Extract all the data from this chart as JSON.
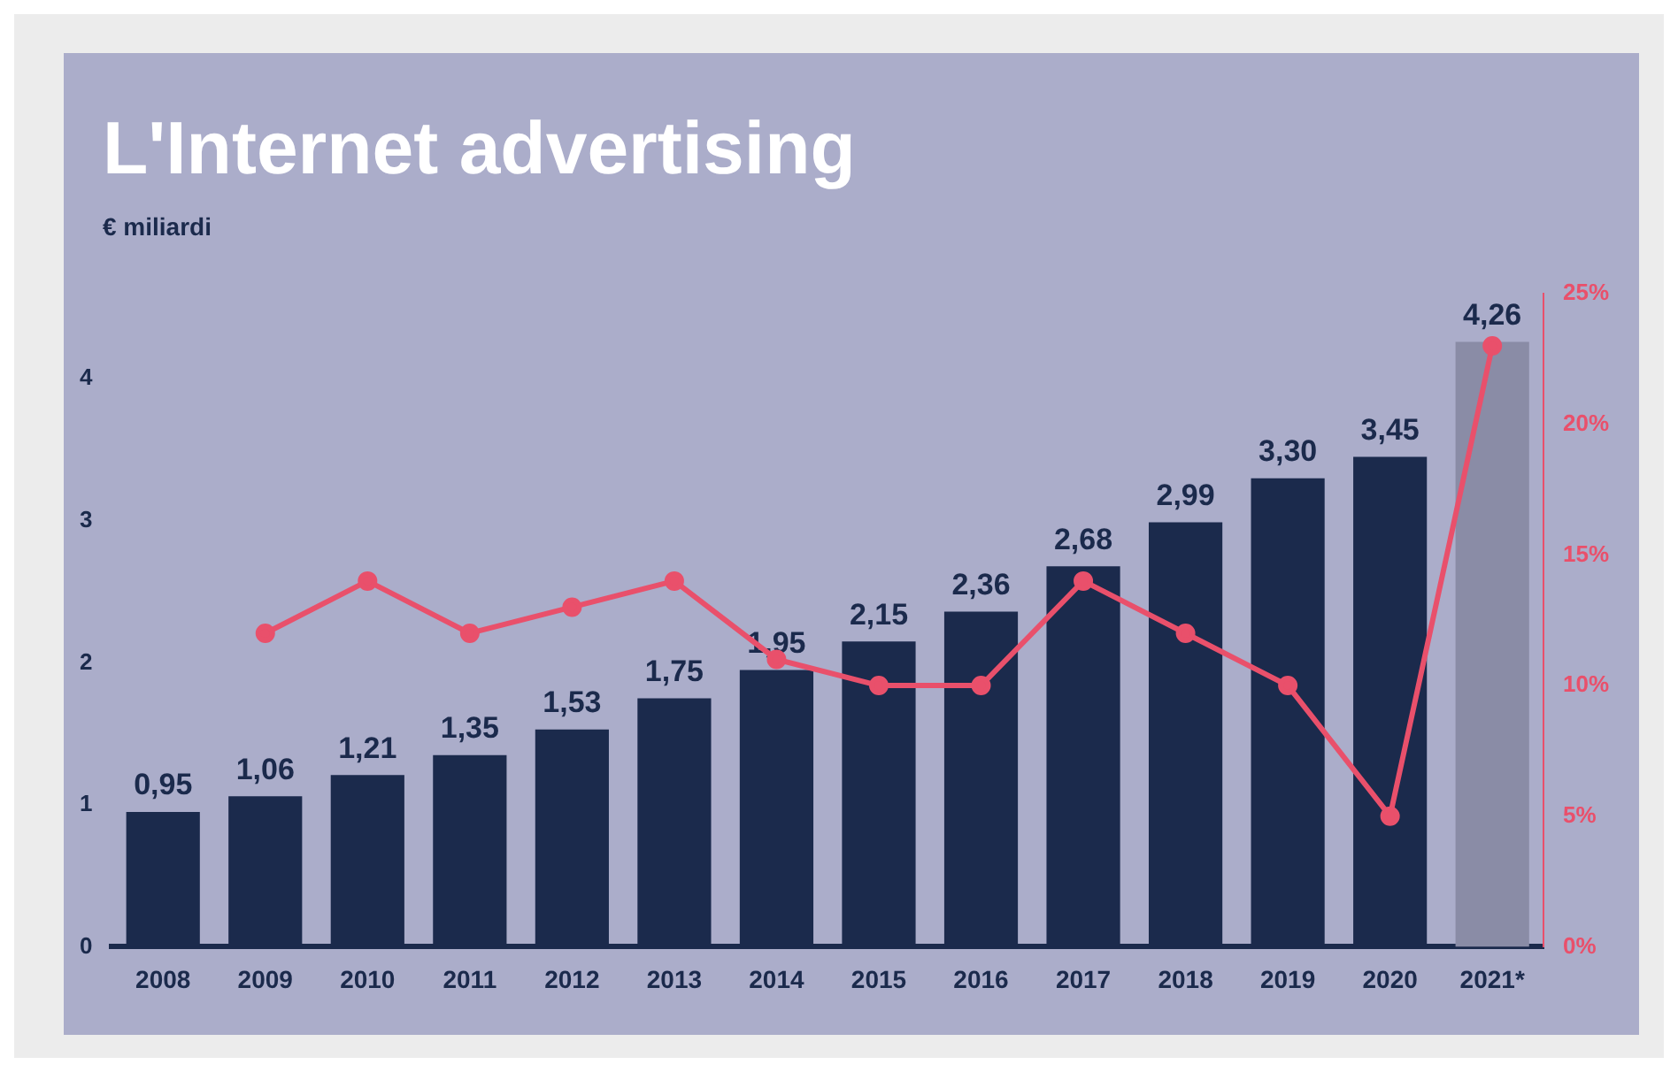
{
  "chart_data": {
    "type": "bar",
    "title": "L'Internet advertising",
    "ylabel": "€ miliardi",
    "categories": [
      "2008",
      "2009",
      "2010",
      "2011",
      "2012",
      "2013",
      "2014",
      "2015",
      "2016",
      "2017",
      "2018",
      "2019",
      "2020",
      "2021*"
    ],
    "series": [
      {
        "colors": [
          "#1b2a4c",
          "#1b2a4c",
          "#1b2a4c",
          "#1b2a4c",
          "#1b2a4c",
          "#1b2a4c",
          "#1b2a4c",
          "#1b2a4c",
          "#1b2a4c",
          "#1b2a4c",
          "#1b2a4c",
          "#1b2a4c",
          "#1b2a4c",
          "#8a8ca6"
        ],
        "values": [
          0.95,
          1.06,
          1.21,
          1.35,
          1.53,
          1.75,
          1.95,
          2.15,
          2.36,
          2.68,
          2.99,
          3.3,
          3.45,
          4.26
        ],
        "value_labels": [
          "0,95",
          "1,06",
          "1,21",
          "1,35",
          "1,53",
          "1,75",
          "1,95",
          "2,15",
          "2,36",
          "2,68",
          "2,99",
          "3,30",
          "3,45",
          "4,26"
        ]
      },
      {
        "type": "line",
        "axis": "y2",
        "color": "#e9506b",
        "values": [
          null,
          12,
          14,
          12,
          13,
          14,
          11,
          10,
          10,
          14,
          12,
          10,
          5,
          23
        ]
      }
    ],
    "ylim": [
      0,
      4.6
    ],
    "yticks": [
      0,
      1,
      2,
      3,
      4
    ],
    "y2lim": [
      0,
      25
    ],
    "y2ticks": [
      {
        "value": 0,
        "label": "0%"
      },
      {
        "value": 5,
        "label": "5%"
      },
      {
        "value": 10,
        "label": "10%"
      },
      {
        "value": 15,
        "label": "15%"
      },
      {
        "value": 20,
        "label": "20%"
      },
      {
        "value": 25,
        "label": "25%"
      }
    ],
    "grid": false,
    "legend": false,
    "marker": "circle"
  }
}
